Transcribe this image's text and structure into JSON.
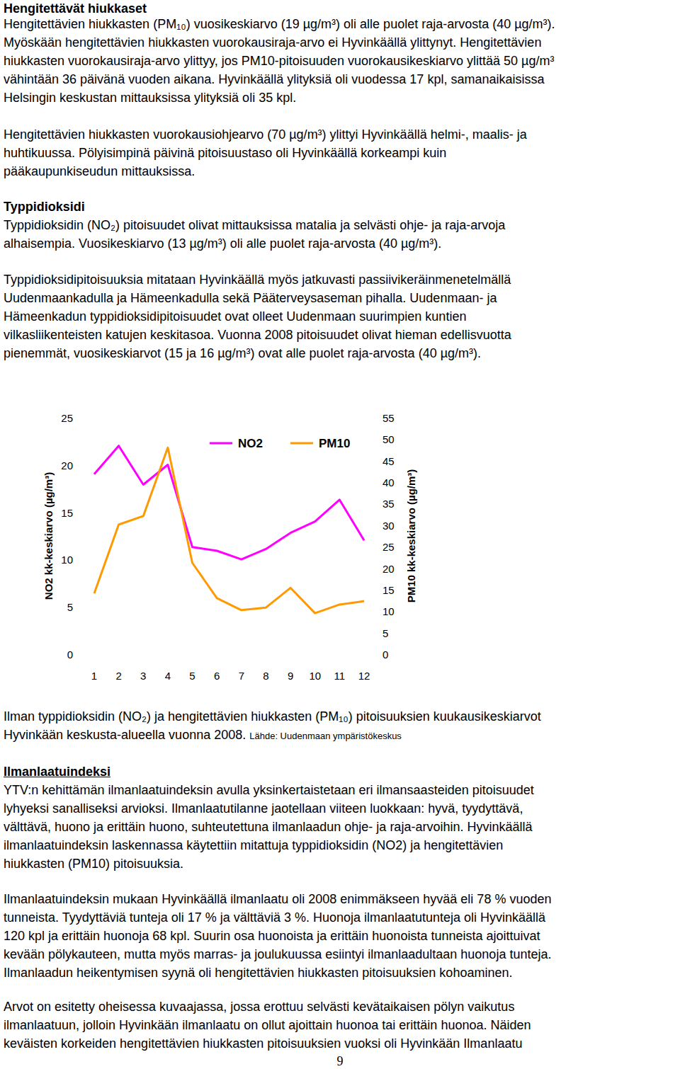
{
  "sections_before": [
    {
      "heading": "Hengitettävät hiukkaset",
      "paragraphs": [
        [
          "Hengitettävien hiukkasten (PM₁₀) vuosikeskiarvo (19 µg/m³) oli alle puolet raja-arvosta (40 µg/m³).",
          "Myöskään hengitettävien hiukkasten vuorokausiraja-arvo ei Hyvinkäällä ylittynyt. Hengitettävien",
          "hiukkasten vuorokausiraja-arvo ylittyy, jos PM10-pitoisuuden vuorokausikeskiarvo ylittää 50 µg/m³",
          "vähintään 36 päivänä vuoden aikana. Hyvinkäällä ylityksiä oli vuodessa 17 kpl, samanaikaisissa",
          "Helsingin keskustan mittauksissa ylityksiä oli 35 kpl."
        ],
        [
          "Hengitettävien hiukkasten vuorokausiohjearvo (70 µg/m³) ylittyi Hyvinkäällä helmi-, maalis- ja",
          "huhtikuussa. Pölyisimpinä päivinä pitoisuustaso oli Hyvinkäällä korkeampi kuin",
          "pääkaupunkiseudun mittauksissa."
        ]
      ]
    },
    {
      "heading": "Typpidioksidi",
      "paragraphs": [
        [
          "Typpidioksidin (NO₂) pitoisuudet olivat mittauksissa matalia ja selvästi ohje- ja raja-arvoja",
          "alhaisempia. Vuosikeskiarvo (13 µg/m³) oli alle puolet raja-arvosta (40 µg/m³)."
        ],
        [
          "Typpidioksidipitoisuuksia mitataan Hyvinkäällä myös jatkuvasti passiivikeräinmenetelmällä",
          "Uudenmaankadulla ja Hämeenkadulla sekä Pääterveysaseman pihalla. Uudenmaan- ja",
          "Hämeenkadun typpidioksidipitoisuudet ovat olleet Uudenmaan suurimpien kuntien",
          "vilkasliikenteisten katujen keskitasoa. Vuonna 2008 pitoisuudet olivat hieman edellisvuotta",
          "pienemmät, vuosikeskiarvot (15 ja 16 µg/m³) ovat alle puolet raja-arvosta (40 µg/m³)."
        ]
      ]
    }
  ],
  "chart_data": {
    "type": "line",
    "categories": [
      1,
      2,
      3,
      4,
      5,
      6,
      7,
      8,
      9,
      10,
      11,
      12
    ],
    "series": [
      {
        "name": "NO2",
        "color": "#ff00ff",
        "values": [
          19.1,
          22.1,
          18.0,
          20.1,
          11.4,
          11.0,
          10.1,
          11.2,
          12.9,
          14.1,
          16.4,
          12.1
        ]
      },
      {
        "name": "PM10",
        "color": "#ff9900",
        "axis": "y2",
        "values": [
          14.3,
          30.3,
          32.3,
          48.2,
          21.4,
          13.2,
          10.4,
          11.0,
          15.6,
          9.7,
          11.7,
          12.5
        ]
      }
    ],
    "y_label": "NO2 kk-keskiarvo (µg/m³)",
    "y2_label": "PM10 kk-keskiarvo (µg/m³)",
    "ylim": [
      0,
      25
    ],
    "yticks": [
      0,
      5,
      10,
      15,
      20,
      25
    ],
    "y2lim": [
      0,
      55
    ],
    "y2ticks": [
      0,
      5,
      10,
      15,
      20,
      25,
      30,
      35,
      40,
      45,
      50,
      55
    ],
    "legend": "top",
    "grid": false
  },
  "caption": {
    "lines": [
      "Ilman typpidioksidin (NO₂) ja hengitettävien hiukkasten (PM₁₀) pitoisuuksien kuukausikeskiarvot",
      "Hyvinkään keskusta-alueella vuonna 2008."
    ],
    "source": "Lähde: Uudenmaan ympäristökeskus"
  },
  "sections_after": [
    {
      "heading": "Ilmanlaatuindeksi",
      "paragraphs": [
        [
          "YTV:n kehittämän ilmanlaatuindeksin avulla yksinkertaistetaan eri ilmansaasteiden pitoisuudet",
          "lyhyeksi sanalliseksi arvioksi. Ilmanlaatutilanne jaotellaan viiteen luokkaan: hyvä, tyydyttävä,",
          "välttävä, huono ja erittäin huono, suhteutettuna ilmanlaadun ohje- ja raja-arvoihin. Hyvinkäällä",
          "ilmanlaatuindeksin laskennassa käytettiin mitattuja typpidioksidin (NO2) ja hengitettävien",
          "hiukkasten (PM10) pitoisuuksia."
        ],
        [
          "Ilmanlaatuindeksin mukaan Hyvinkäällä ilmanlaatu oli 2008 enimmäkseen hyvää eli 78 % vuoden",
          "tunneista. Tyydyttäviä tunteja oli 17 % ja välttäviä 3 %. Huonoja ilmanlaatutunteja oli Hyvinkäällä",
          "120 kpl ja erittäin huonoja 68 kpl. Suurin osa huonoista ja erittäin huonoista tunneista ajoittuivat",
          "kevään pölykauteen, mutta myös marras- ja joulukuussa esiintyi ilmanlaadultaan huonoja tunteja.",
          "Ilmanlaadun heikentymisen syynä oli hengitettävien hiukkasten pitoisuuksien kohoaminen."
        ],
        [
          "Arvot on esitetty oheisessa kuvaajassa, jossa erottuu selvästi kevätaikaisen pölyn vaikutus",
          "ilmanlaatuun, jolloin Hyvinkään ilmanlaatu on ollut ajoittain huonoa tai erittäin huonoa. Näiden",
          "keväisten korkeiden hengitettävien hiukkasten pitoisuuksien vuoksi oli Hyvinkään Ilmanlaatu"
        ]
      ]
    }
  ],
  "page_number": 9
}
